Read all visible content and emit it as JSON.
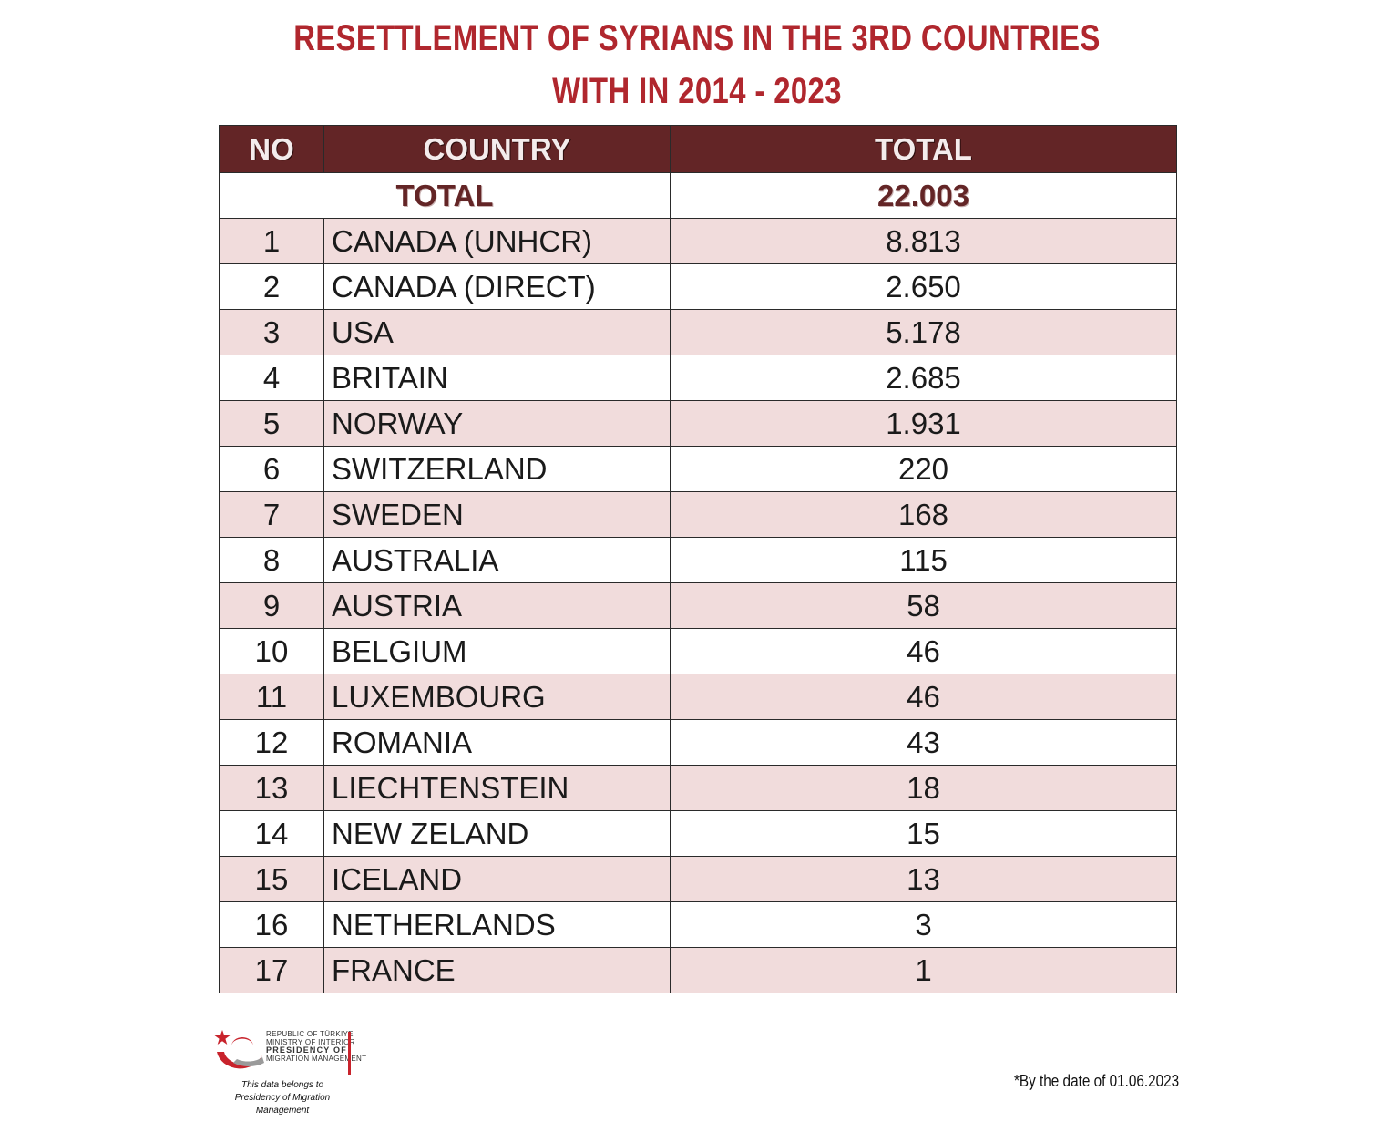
{
  "title": {
    "line1": "RESETTLEMENT OF SYRIANS IN THE 3RD COUNTRIES",
    "line2": "WITH IN 2014 - 2023"
  },
  "table": {
    "headers": [
      "NO",
      "COUNTRY",
      "TOTAL"
    ],
    "total_label": "TOTAL",
    "total_value": "22.003",
    "rows": [
      {
        "no": "1",
        "country": "CANADA (UNHCR)",
        "total": "8.813"
      },
      {
        "no": "2",
        "country": "CANADA (DIRECT)",
        "total": "2.650"
      },
      {
        "no": "3",
        "country": "USA",
        "total": "5.178"
      },
      {
        "no": "4",
        "country": "BRITAIN",
        "total": "2.685"
      },
      {
        "no": "5",
        "country": "NORWAY",
        "total": "1.931"
      },
      {
        "no": "6",
        "country": "SWITZERLAND",
        "total": "220"
      },
      {
        "no": "7",
        "country": "SWEDEN",
        "total": "168"
      },
      {
        "no": "8",
        "country": "AUSTRALIA",
        "total": "115"
      },
      {
        "no": "9",
        "country": "AUSTRIA",
        "total": "58"
      },
      {
        "no": "10",
        "country": "BELGIUM",
        "total": "46"
      },
      {
        "no": "11",
        "country": "LUXEMBOURG",
        "total": "46"
      },
      {
        "no": "12",
        "country": "ROMANIA",
        "total": "43"
      },
      {
        "no": "13",
        "country": "LIECHTENSTEIN",
        "total": "18"
      },
      {
        "no": "14",
        "country": "NEW ZELAND",
        "total": "15"
      },
      {
        "no": "15",
        "country": "ICELAND",
        "total": "13"
      },
      {
        "no": "16",
        "country": "NETHERLANDS",
        "total": "3"
      },
      {
        "no": "17",
        "country": "FRANCE",
        "total": "1"
      }
    ]
  },
  "logo": {
    "line1": "REPUBLIC OF TÜRKIYE",
    "line2": "MINISTRY OF INTERIOR",
    "line3": "PRESIDENCY OF",
    "line4": "MIGRATION MANAGEMENT",
    "icon": "crescent-star-icon",
    "accent_color": "#c8232c"
  },
  "credit": {
    "line1": "This data belongs to",
    "line2": "Presidency of Migration Management"
  },
  "footnote": "*By the date of 01.06.2023",
  "colors": {
    "title": "#b0272e",
    "header_bg": "#632526",
    "row_alt": "#f1dcdc"
  }
}
